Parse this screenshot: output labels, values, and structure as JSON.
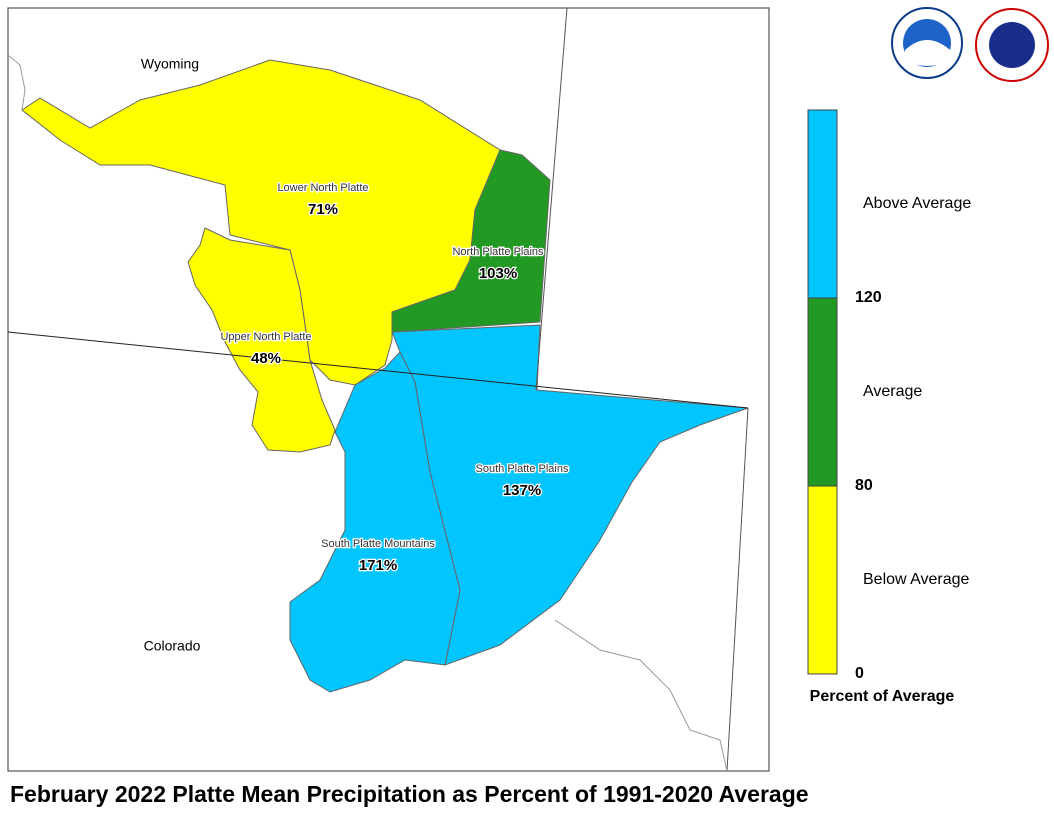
{
  "map": {
    "title": "February 2022 Platte Mean Precipitation as Percent of 1991-2020 Average",
    "states": [
      "Wyoming",
      "Colorado"
    ],
    "basins": [
      {
        "name": "Lower North Platte",
        "value": "71%",
        "color": "#ffff00"
      },
      {
        "name": "Upper North Platte",
        "value": "48%",
        "color": "#ffff00"
      },
      {
        "name": "North Platte Plains",
        "value": "103%",
        "color": "#229922"
      },
      {
        "name": "South Platte Plains",
        "value": "137%",
        "color": "#00c5ff"
      },
      {
        "name": "South Platte Mountains",
        "value": "171%",
        "color": "#00c5ff"
      }
    ],
    "legend": {
      "title": "Percent of Average",
      "bands": [
        {
          "label": "Above Average",
          "color": "#00c5ff"
        },
        {
          "label": "Average",
          "color": "#229922"
        },
        {
          "label": "Below Average",
          "color": "#ffff00"
        }
      ],
      "ticks": [
        "120",
        "80",
        "0"
      ]
    }
  }
}
